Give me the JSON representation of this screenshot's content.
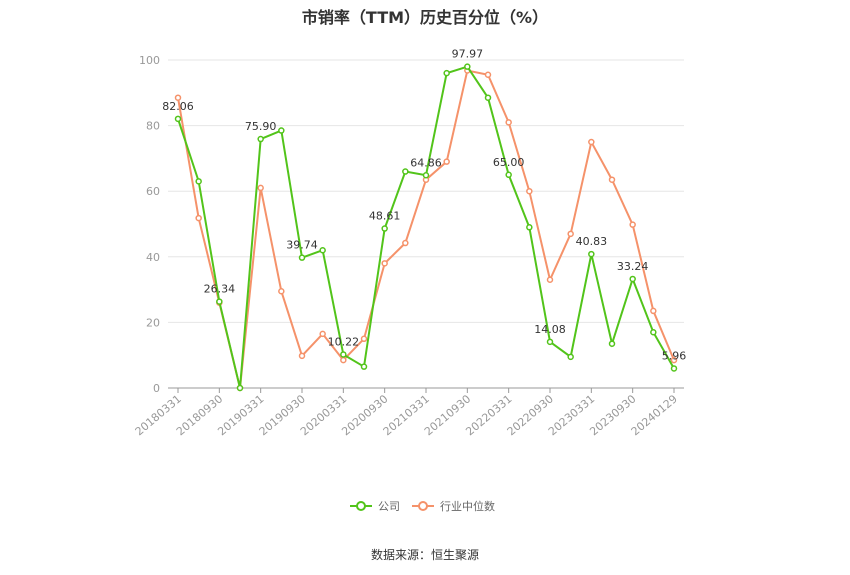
{
  "chart_data": {
    "type": "line",
    "title": "市销率（TTM）历史百分位（%）",
    "xlabel": "",
    "ylabel": "",
    "ylim": [
      0,
      100
    ],
    "yticks": [
      0,
      20,
      40,
      60,
      80,
      100
    ],
    "grid": true,
    "legend_position": "bottom",
    "x": [
      "20180331",
      "20180630",
      "20180930",
      "20181231",
      "20190331",
      "20190630",
      "20190930",
      "20191231",
      "20200331",
      "20200630",
      "20200930",
      "20201231",
      "20210331",
      "20210630",
      "20210930",
      "20211231",
      "20220331",
      "20220630",
      "20220930",
      "20221231",
      "20230331",
      "20230630",
      "20230930",
      "20231231",
      "20240129"
    ],
    "x_tick_labels": [
      "20180331",
      "20180930",
      "20190331",
      "20190930",
      "20200331",
      "20200930",
      "20210331",
      "20210930",
      "20220331",
      "20220930",
      "20230331",
      "20230930",
      "20240129"
    ],
    "series": [
      {
        "name": "公司",
        "color": "#52c41a",
        "values": [
          82.06,
          63.0,
          26.34,
          0.0,
          75.9,
          78.5,
          39.74,
          42.0,
          10.22,
          6.5,
          48.61,
          66.0,
          64.86,
          96.0,
          97.97,
          88.5,
          65.0,
          49.0,
          14.08,
          9.5,
          40.83,
          13.5,
          33.24,
          17.0,
          5.96
        ],
        "labels": [
          "82.06",
          "",
          "26.34",
          "",
          "75.90",
          "",
          "39.74",
          "",
          "10.22",
          "",
          "48.61",
          "",
          "64.86",
          "",
          "97.97",
          "",
          "65.00",
          "",
          "14.08",
          "",
          "40.83",
          "",
          "33.24",
          "",
          "5.96"
        ]
      },
      {
        "name": "行业中位数",
        "color": "#f5926a",
        "values": [
          88.5,
          51.8,
          26.0,
          0.0,
          61.0,
          29.5,
          9.8,
          16.5,
          8.5,
          15.0,
          38.0,
          44.2,
          63.5,
          69.0,
          96.8,
          95.5,
          81.0,
          60.0,
          33.0,
          47.0,
          75.0,
          63.5,
          49.8,
          23.5,
          8.5
        ]
      }
    ]
  },
  "source_note": "数据来源：恒生聚源"
}
